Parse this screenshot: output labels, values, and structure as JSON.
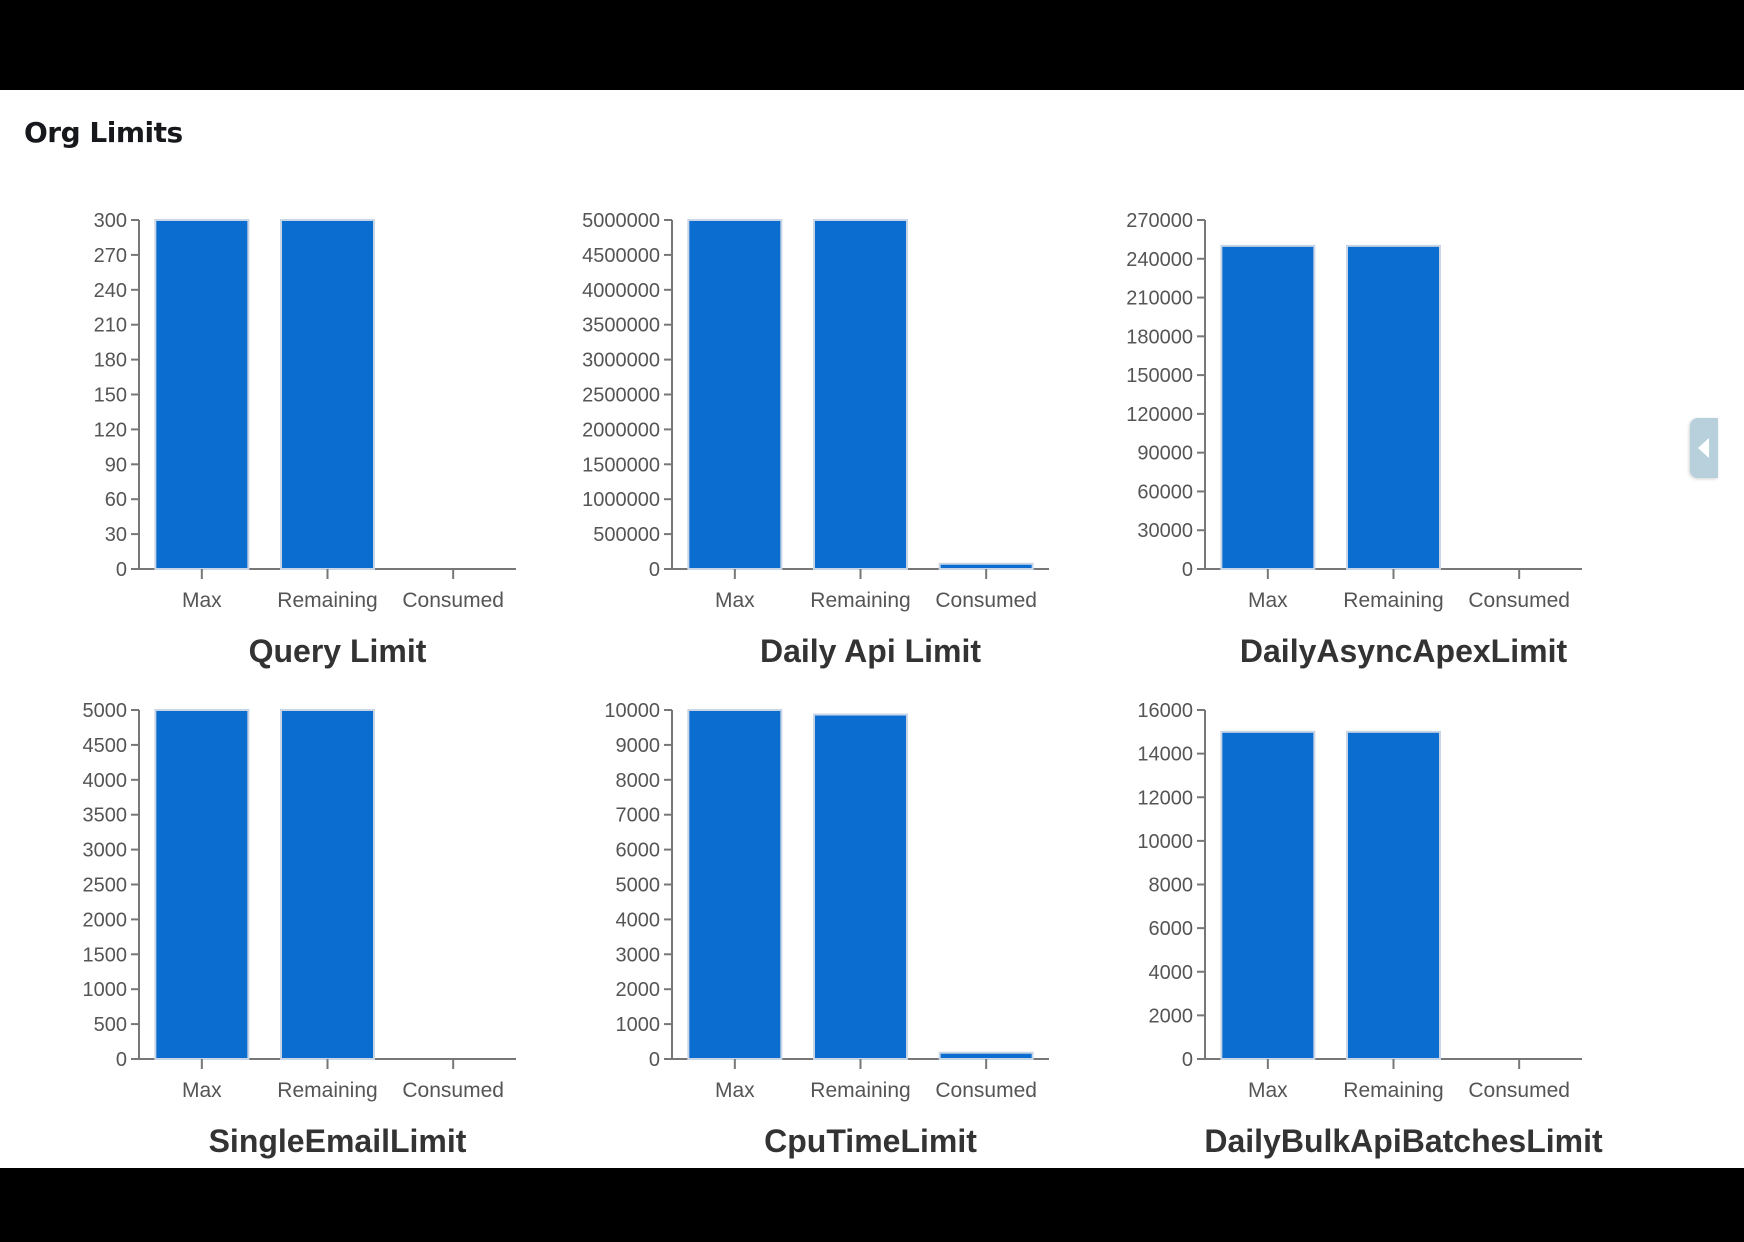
{
  "page": {
    "title": "Org Limits",
    "accent_color": "#0b6dcf"
  },
  "drawer_toggle": {
    "icon": "chevron-left-icon"
  },
  "chart_data": [
    {
      "type": "bar",
      "title": "Query Limit",
      "categories": [
        "Max",
        "Remaining",
        "Consumed"
      ],
      "values": [
        300,
        300,
        0
      ],
      "ylim": [
        0,
        300
      ],
      "yticks": [
        0,
        30,
        60,
        90,
        120,
        150,
        180,
        210,
        240,
        270,
        300
      ],
      "ytick_labels": [
        "0",
        "30",
        "60",
        "90",
        "120",
        "150",
        "180",
        "210",
        "240",
        "270",
        "300"
      ],
      "color": "#0b6dcf",
      "grid": false,
      "legend": "none"
    },
    {
      "type": "bar",
      "title": "Daily Api Limit",
      "categories": [
        "Max",
        "Remaining",
        "Consumed"
      ],
      "values": [
        5000000,
        5000000,
        75000
      ],
      "ylim": [
        0,
        5000000
      ],
      "yticks": [
        0,
        500000,
        1000000,
        1500000,
        2000000,
        2500000,
        3000000,
        3500000,
        4000000,
        4500000,
        5000000
      ],
      "ytick_labels": [
        "0",
        "500000",
        "1000000",
        "1500000",
        "2000000",
        "2500000",
        "3000000",
        "3500000",
        "4000000",
        "4500000",
        "5000000"
      ],
      "color": "#0b6dcf",
      "grid": false,
      "legend": "none"
    },
    {
      "type": "bar",
      "title": "DailyAsyncApexLimit",
      "categories": [
        "Max",
        "Remaining",
        "Consumed"
      ],
      "values": [
        250000,
        250000,
        0
      ],
      "ylim": [
        0,
        270000
      ],
      "yticks": [
        0,
        30000,
        60000,
        90000,
        120000,
        150000,
        180000,
        210000,
        240000,
        270000
      ],
      "ytick_labels": [
        "0",
        "30000",
        "60000",
        "90000",
        "120000",
        "150000",
        "180000",
        "210000",
        "240000",
        "270000"
      ],
      "color": "#0b6dcf",
      "grid": false,
      "legend": "none"
    },
    {
      "type": "bar",
      "title": "SingleEmailLimit",
      "categories": [
        "Max",
        "Remaining",
        "Consumed"
      ],
      "values": [
        5000,
        5000,
        0
      ],
      "ylim": [
        0,
        5000
      ],
      "yticks": [
        0,
        500,
        1000,
        1500,
        2000,
        2500,
        3000,
        3500,
        4000,
        4500,
        5000
      ],
      "ytick_labels": [
        "0",
        "500",
        "1000",
        "1500",
        "2000",
        "2500",
        "3000",
        "3500",
        "4000",
        "4500",
        "5000"
      ],
      "color": "#0b6dcf",
      "grid": false,
      "legend": "none"
    },
    {
      "type": "bar",
      "title": "CpuTimeLimit",
      "categories": [
        "Max",
        "Remaining",
        "Consumed"
      ],
      "values": [
        10000,
        9870,
        180
      ],
      "ylim": [
        0,
        10000
      ],
      "yticks": [
        0,
        1000,
        2000,
        3000,
        4000,
        5000,
        6000,
        7000,
        8000,
        9000,
        10000
      ],
      "ytick_labels": [
        "0",
        "1000",
        "2000",
        "3000",
        "4000",
        "5000",
        "6000",
        "7000",
        "8000",
        "9000",
        "10000"
      ],
      "color": "#0b6dcf",
      "grid": false,
      "legend": "none"
    },
    {
      "type": "bar",
      "title": "DailyBulkApiBatchesLimit",
      "categories": [
        "Max",
        "Remaining",
        "Consumed"
      ],
      "values": [
        15000,
        15000,
        0
      ],
      "ylim": [
        0,
        16000
      ],
      "yticks": [
        0,
        2000,
        4000,
        6000,
        8000,
        10000,
        12000,
        14000,
        16000
      ],
      "ytick_labels": [
        "0",
        "2000",
        "4000",
        "6000",
        "8000",
        "10000",
        "12000",
        "14000",
        "16000"
      ],
      "color": "#0b6dcf",
      "grid": false,
      "legend": "none"
    }
  ]
}
